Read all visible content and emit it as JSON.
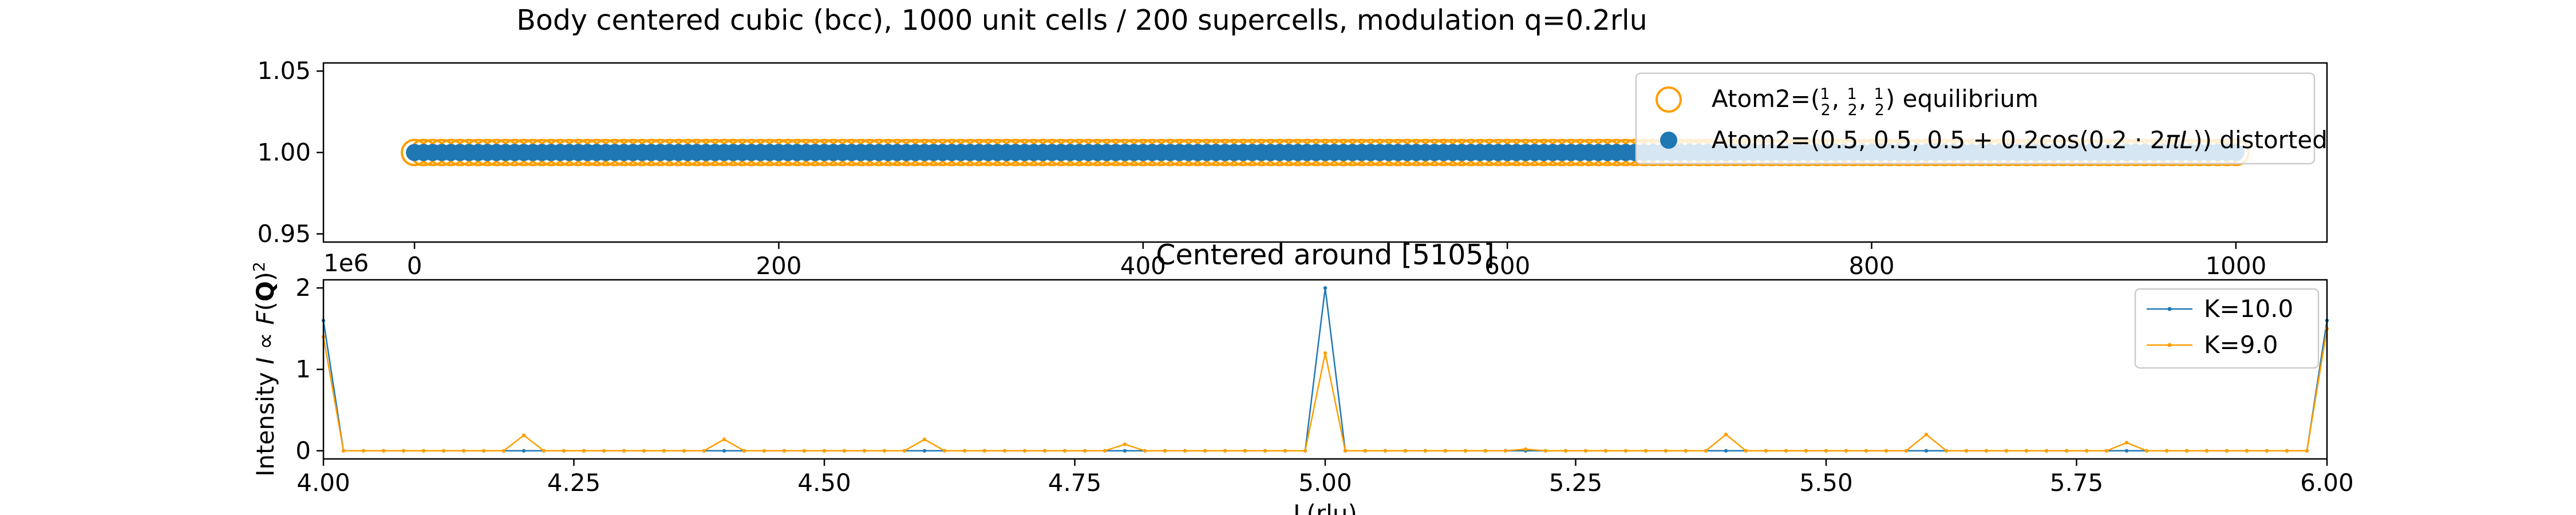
{
  "figure": {
    "title": "Body centered cubic (bcc), 1000 unit cells / 200 supercells, modulation q=0.2rlu"
  },
  "colors": {
    "blue": "#1f77b4",
    "orange": "#ff9e00",
    "axes": "#000000",
    "legend_border": "#cccccc"
  },
  "chart_data": [
    {
      "type": "scatter",
      "xlim": [
        -50,
        1050
      ],
      "ylim": [
        0.945,
        1.055
      ],
      "xticks": [
        "0",
        "200",
        "400",
        "600",
        "800",
        "1000"
      ],
      "yticks": [
        "0.95",
        "1.00",
        "1.05"
      ],
      "grid": false,
      "legend_position": "top-right",
      "series": [
        {
          "name": "Atom2=(1/2, 1/2, 1/2) equilibrium",
          "style": "open circle",
          "color": "#ff9e00",
          "x_range": [
            0,
            1000
          ],
          "y": 1.0
        },
        {
          "name": "Atom2=(0.5, 0.5, 0.5 + 0.2cos(0.2 · 2πL)) distorted",
          "style": "filled circle",
          "color": "#1f77b4",
          "x_range": [
            0,
            1000
          ],
          "y": 1.0
        }
      ]
    },
    {
      "type": "line",
      "title": "Centered around [5105]",
      "xlabel": "L(rlu)",
      "ylabel": "Intensity I ∝ F(Q)²",
      "y_multiplier": "1e6",
      "xlim": [
        4.0,
        6.0
      ],
      "ylim": [
        -100000.0,
        2100000.0
      ],
      "xticks": [
        "4.00",
        "4.25",
        "4.50",
        "4.75",
        "5.00",
        "5.25",
        "5.50",
        "5.75",
        "6.00"
      ],
      "yticks": [
        "0",
        "1",
        "2"
      ],
      "grid": false,
      "legend_position": "top-right",
      "x_step": 0.02,
      "series": [
        {
          "name": "K=10.0",
          "color": "#1f77b4",
          "baseline": 0,
          "peaks": [
            {
              "L": 4.0,
              "I": 1600000
            },
            {
              "L": 5.0,
              "I": 2000000
            },
            {
              "L": 6.0,
              "I": 1600000
            }
          ]
        },
        {
          "name": "K=9.0",
          "color": "#ff9e00",
          "baseline": 0,
          "peaks": [
            {
              "L": 4.0,
              "I": 1400000
            },
            {
              "L": 4.2,
              "I": 190000
            },
            {
              "L": 4.4,
              "I": 140000
            },
            {
              "L": 4.6,
              "I": 140000
            },
            {
              "L": 4.8,
              "I": 80000
            },
            {
              "L": 5.0,
              "I": 1200000
            },
            {
              "L": 5.2,
              "I": 20000
            },
            {
              "L": 5.4,
              "I": 200000
            },
            {
              "L": 5.6,
              "I": 200000
            },
            {
              "L": 5.8,
              "I": 100000
            },
            {
              "L": 6.0,
              "I": 1500000
            }
          ]
        }
      ]
    }
  ]
}
